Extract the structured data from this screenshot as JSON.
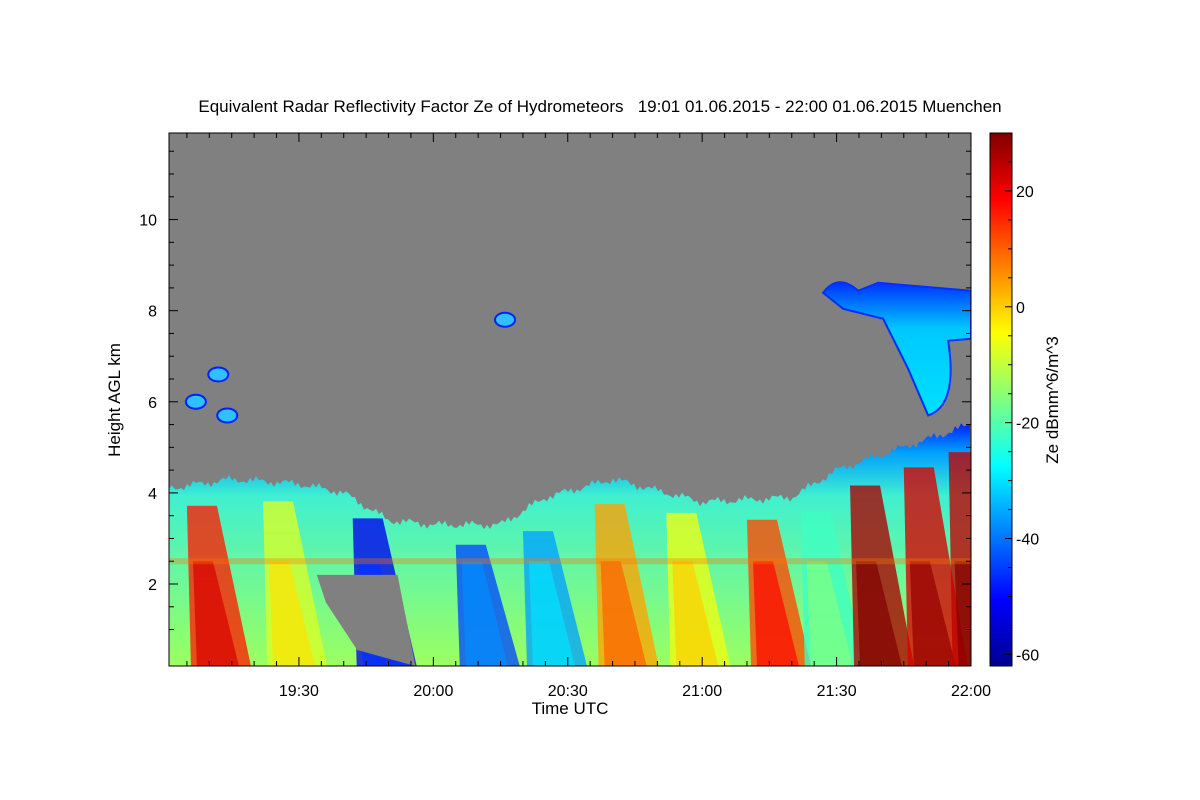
{
  "chart_data": {
    "type": "heatmap",
    "title": "Equivalent Radar Reflectivity Factor Ze of Hydrometeors   19:01 01.06.2015 - 22:00 01.06.2015 Muenchen",
    "xlabel": "Time UTC",
    "ylabel": "Height AGL km",
    "colorbar_label": "Ze dBmm^6/m^3",
    "x_range": [
      "19:01",
      "22:00"
    ],
    "y_range_km": [
      0.2,
      11.9
    ],
    "x_ticks": [
      "19:30",
      "20:00",
      "20:30",
      "21:00",
      "21:30",
      "22:00"
    ],
    "y_ticks": [
      "2",
      "4",
      "6",
      "8",
      "10"
    ],
    "colorbar_range": [
      -62,
      30
    ],
    "colorbar_ticks": [
      "20",
      "0",
      "-20",
      "-40",
      "-60"
    ],
    "background_color": "#808080",
    "colormap": [
      "#00008f",
      "#0000ff",
      "#0080ff",
      "#00ffff",
      "#80ff80",
      "#ffff00",
      "#ff8000",
      "#ff0000",
      "#800000"
    ],
    "echo_top_km": [
      [
        "19:01",
        4.1
      ],
      [
        "19:15",
        4.3
      ],
      [
        "19:30",
        4.2
      ],
      [
        "19:40",
        4.0
      ],
      [
        "19:50",
        3.4
      ],
      [
        "20:00",
        3.3
      ],
      [
        "20:15",
        3.3
      ],
      [
        "20:25",
        3.9
      ],
      [
        "20:40",
        4.3
      ],
      [
        "21:00",
        3.8
      ],
      [
        "21:20",
        3.9
      ],
      [
        "21:30",
        4.5
      ],
      [
        "21:45",
        5.0
      ],
      [
        "22:00",
        5.5
      ]
    ],
    "upper_cloud": {
      "x_range": [
        "21:27",
        "22:00"
      ],
      "height_km": [
        5.7,
        8.7
      ]
    },
    "isolated_echoes": [
      {
        "x": "19:07",
        "height_km": 6.0
      },
      {
        "x": "19:12",
        "height_km": 6.6
      },
      {
        "x": "19:14",
        "height_km": 5.7
      },
      {
        "x": "20:16",
        "height_km": 7.8
      }
    ],
    "melting_layer_km": 2.5,
    "fall_streaks": [
      {
        "x": "19:05",
        "ze": 16
      },
      {
        "x": "19:22",
        "ze": -8
      },
      {
        "x": "19:42",
        "ze": -52
      },
      {
        "x": "20:05",
        "ze": -44
      },
      {
        "x": "20:20",
        "ze": -36
      },
      {
        "x": "20:36",
        "ze": 4
      },
      {
        "x": "20:52",
        "ze": -6
      },
      {
        "x": "21:10",
        "ze": 12
      },
      {
        "x": "21:22",
        "ze": -22
      },
      {
        "x": "21:33",
        "ze": 26
      },
      {
        "x": "21:45",
        "ze": 22
      },
      {
        "x": "21:55",
        "ze": 24
      }
    ]
  }
}
